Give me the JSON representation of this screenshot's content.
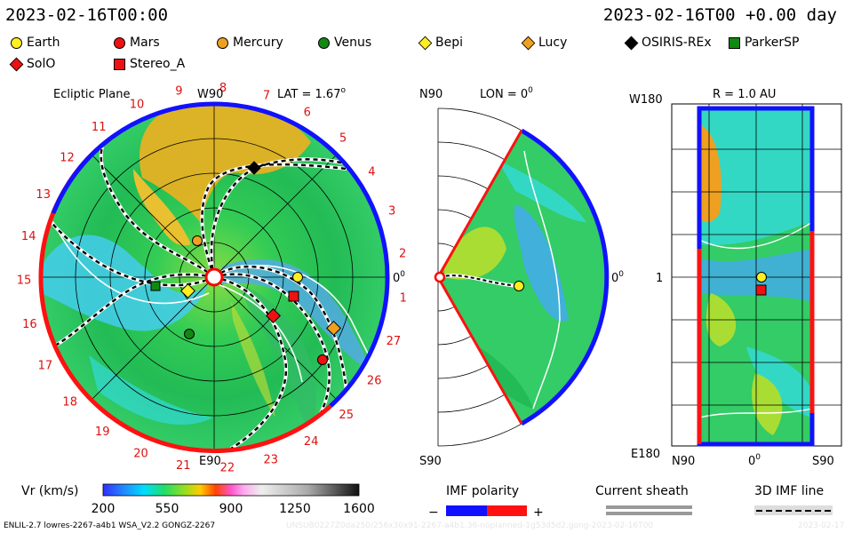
{
  "header": {
    "left_time": "2023-02-16T00:00",
    "right_time": "2023-02-16T00 +0.00 day"
  },
  "legend": [
    {
      "name": "Earth",
      "shape": "circle",
      "color": "#ffee22"
    },
    {
      "name": "Mars",
      "shape": "circle",
      "color": "#ee1111"
    },
    {
      "name": "Mercury",
      "shape": "circle",
      "color": "#f0a020"
    },
    {
      "name": "Venus",
      "shape": "circle",
      "color": "#118811"
    },
    {
      "name": "Bepi",
      "shape": "diamond",
      "color": "#ffee22"
    },
    {
      "name": "Lucy",
      "shape": "diamond",
      "color": "#f0a020"
    },
    {
      "name": "OSIRIS-REx",
      "shape": "diamond",
      "color": "#000000"
    },
    {
      "name": "ParkerSP",
      "shape": "square",
      "color": "#118811"
    },
    {
      "name": "SolO",
      "shape": "diamond",
      "color": "#ee1111"
    },
    {
      "name": "Stereo_A",
      "shape": "square",
      "color": "#ee1111"
    }
  ],
  "panels": {
    "ecliptic": {
      "title": "Ecliptic Plane",
      "lat_label": "LAT = 1.67",
      "lat_sup": "o",
      "top_label": "W90",
      "bottom_label": "E90",
      "right_label": "0",
      "right_sup": "0",
      "sector_labels": [
        "1",
        "2",
        "3",
        "4",
        "5",
        "6",
        "7",
        "8",
        "9",
        "10",
        "11",
        "12",
        "13",
        "14",
        "15",
        "16",
        "17",
        "18",
        "19",
        "20",
        "21",
        "22",
        "23",
        "24",
        "25",
        "26",
        "27"
      ]
    },
    "meridional": {
      "title": "LON = 0",
      "title_sup": "0",
      "top_label": "N90",
      "bottom_label": "S90",
      "right_label": "0",
      "right_sup": "0"
    },
    "radial": {
      "title": "R = 1.0 AU",
      "top_label": "W180",
      "bottom_label": "E180",
      "mid_label": "1",
      "x_labels": [
        "N90",
        "0",
        "S90"
      ],
      "x_mid_sup": "0"
    }
  },
  "colorbar": {
    "label": "Vr (km/s)",
    "ticks": [
      "200",
      "550",
      "900",
      "1250",
      "1600"
    ]
  },
  "imf_legend": {
    "title": "IMF polarity",
    "minus": "−",
    "plus": "+",
    "negative_color": "#0000ff",
    "positive_color": "#ff0000"
  },
  "sheath_legend": {
    "title": "Current sheath"
  },
  "fieldline_legend": {
    "title": "3D IMF line"
  },
  "footer": {
    "left": "ENLIL-2.7 lowres-2267-a4b1 WSA_V2.2 GONGZ-2267",
    "middle": "UNSUB0227Z0da250/256x30x91-2267-a4b1.36-noplanned-1g53d5d2.gong-2023-02-16T00",
    "right": "2023-02-17"
  },
  "chart_data": {
    "type": "heatmap",
    "quantity": "Vr (km/s)",
    "color_range": [
      200,
      1600
    ],
    "colorbar_ticks": [
      200,
      550,
      900,
      1250,
      1600
    ],
    "time": "2023-02-16T00:00",
    "latitude_deg": 1.67,
    "longitude_deg": 0,
    "radius_au": 1.0,
    "bodies": [
      "Earth",
      "Mars",
      "Mercury",
      "Venus",
      "Bepi",
      "Lucy",
      "OSIRIS-REx",
      "ParkerSP",
      "SolO",
      "Stereo_A"
    ]
  }
}
